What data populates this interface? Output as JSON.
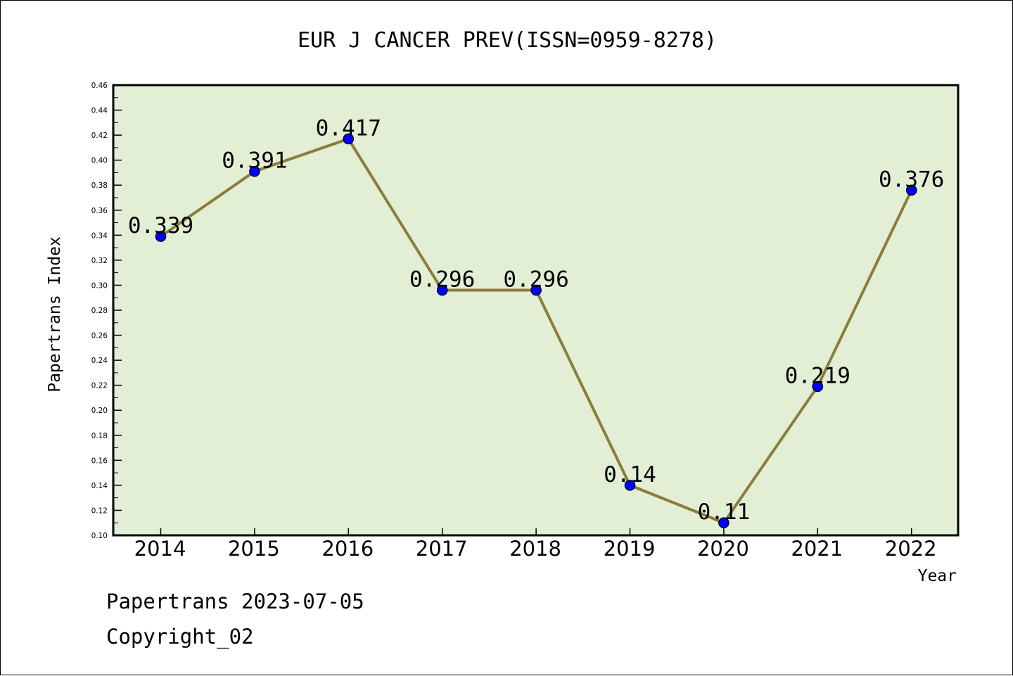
{
  "chart_data": {
    "type": "line",
    "title": "EUR J CANCER PREV(ISSN=0959-8278)",
    "xlabel": "Year",
    "ylabel": "Papertrans Index",
    "categories": [
      "2014",
      "2015",
      "2016",
      "2017",
      "2018",
      "2019",
      "2020",
      "2021",
      "2022"
    ],
    "series": [
      {
        "values": [
          0.339,
          0.391,
          0.417,
          0.296,
          0.296,
          0.14,
          0.11,
          0.219,
          0.376
        ],
        "labels": [
          "0.339",
          "0.391",
          "0.417",
          "0.296",
          "0.296",
          "0.14",
          "0.11",
          "0.219",
          "0.376"
        ]
      }
    ],
    "ylim": [
      0.1,
      0.46
    ],
    "yticks": [
      "0.10",
      "0.12",
      "0.14",
      "0.16",
      "0.18",
      "0.20",
      "0.22",
      "0.24",
      "0.26",
      "0.28",
      "0.30",
      "0.32",
      "0.34",
      "0.36",
      "0.38",
      "0.40",
      "0.42",
      "0.44",
      "0.46"
    ],
    "grid": false,
    "colors": {
      "plot_background": "#e2efd5",
      "line": "#8b7d3a",
      "marker": "#0000ff"
    }
  },
  "footer": {
    "credit": "Papertrans 2023-07-05",
    "copyright": "Copyright_02"
  }
}
